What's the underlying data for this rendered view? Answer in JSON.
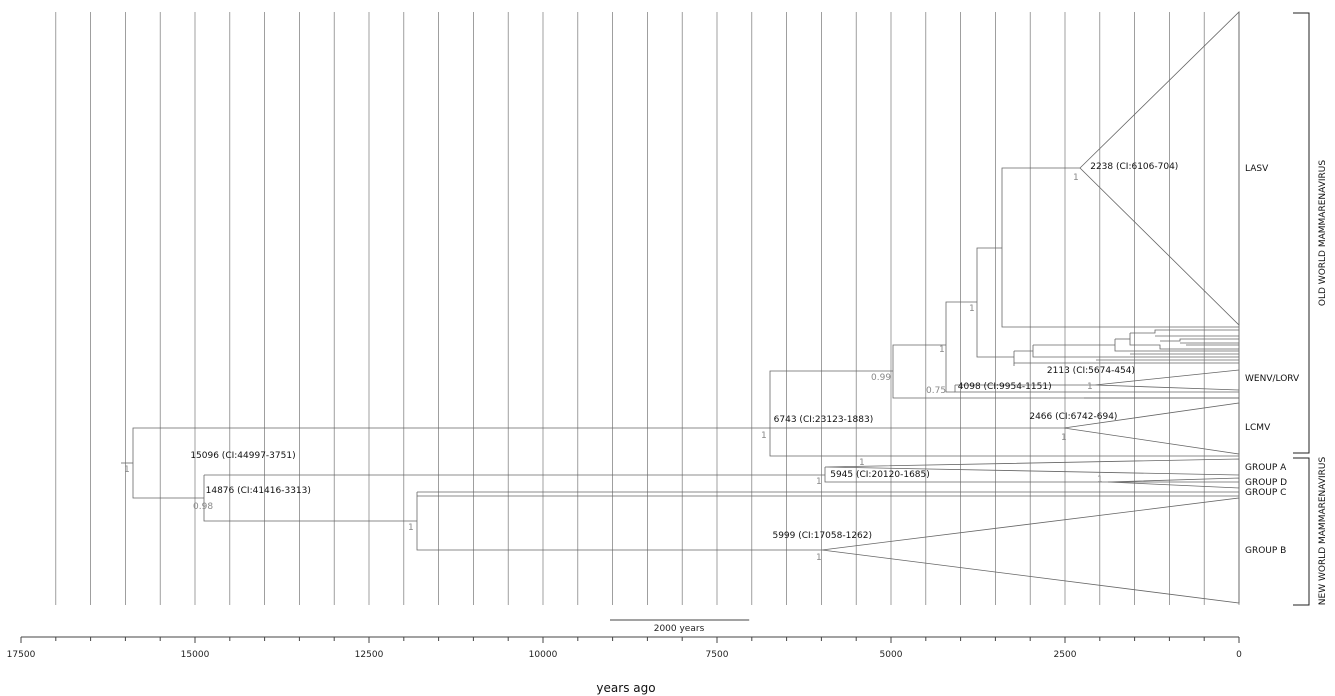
{
  "scale_bar": {
    "label": "2000 years",
    "years": 2000
  },
  "axis": {
    "label": "years ago",
    "ticks": [
      17500,
      15000,
      12500,
      10000,
      7500,
      5000,
      2500,
      0
    ],
    "range": [
      17500,
      0
    ]
  },
  "groups": [
    {
      "id": "old",
      "label": "OLD WORLD MAMMARENAVIRUS"
    },
    {
      "id": "new",
      "label": "NEW WORLD MAMMARENAVIRUS"
    }
  ],
  "clades": [
    {
      "id": "lasv",
      "label": "LASV"
    },
    {
      "id": "wenv",
      "label": "WENV/LORV"
    },
    {
      "id": "lcmv",
      "label": "LCMV"
    },
    {
      "id": "ga",
      "label": "GROUP A"
    },
    {
      "id": "gd",
      "label": "GROUP D"
    },
    {
      "id": "gc",
      "label": "GROUP C"
    },
    {
      "id": "gb",
      "label": "GROUP B"
    }
  ],
  "node_labels": [
    {
      "id": "n_lasv",
      "text": "2238 (CI:6106-704)",
      "age": 2238
    },
    {
      "id": "n_wenv_inner",
      "text": "2113 (CI:5674-454)",
      "age": 2113
    },
    {
      "id": "n_wenv",
      "text": "4098 (CI:9954-1151)",
      "age": 4098
    },
    {
      "id": "n_lcmv",
      "text": "2466 (CI:6742-694)",
      "age": 2466
    },
    {
      "id": "n_ow",
      "text": "6743 (CI:23123-1883)",
      "age": 6743
    },
    {
      "id": "n_root",
      "text": "15096 (CI:44997-3751)",
      "age": 15096
    },
    {
      "id": "n_nw",
      "text": "14876 (CI:41416-3313)",
      "age": 14876
    },
    {
      "id": "n_gad",
      "text": "5945 (CI:20120-1685)",
      "age": 5945
    },
    {
      "id": "n_gb",
      "text": "5999 (CI:17058-1262)",
      "age": 5999
    }
  ],
  "support_values": [
    "1",
    "1",
    "0.99",
    "0.75",
    "1",
    "1",
    "1",
    "1",
    "1",
    "0.98",
    "1",
    "1",
    "1",
    "1",
    "1"
  ]
}
